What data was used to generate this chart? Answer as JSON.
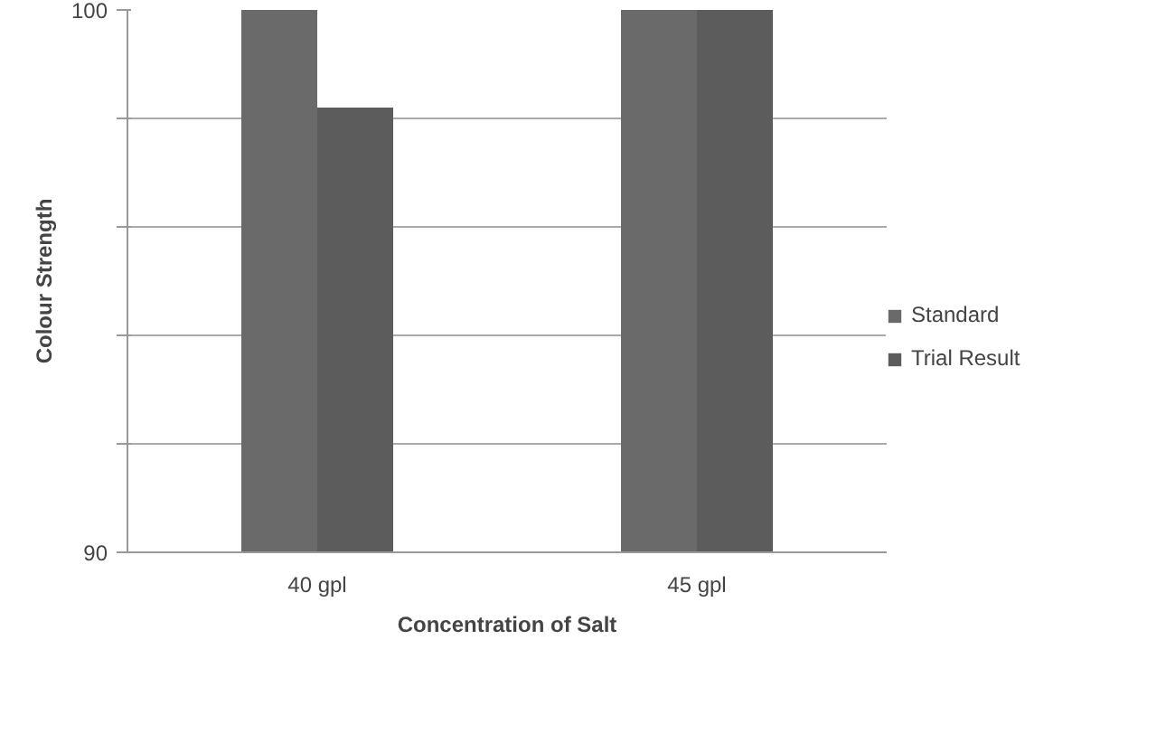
{
  "chart_data": {
    "type": "bar",
    "xlabel": "Concentration of Salt",
    "ylabel": "Colour Strength",
    "categories": [
      "40 gpl",
      "45 gpl"
    ],
    "series": [
      {
        "name": "Standard",
        "color": "#6a6a6a",
        "values": [
          100,
          100
        ]
      },
      {
        "name": "Trial Result",
        "color": "#5c5c5c",
        "values": [
          98.2,
          100
        ]
      }
    ],
    "ylim": [
      90,
      100
    ],
    "yticks": [
      90,
      {
        "value": 92,
        "label": null
      },
      {
        "value": 94,
        "label": null
      },
      {
        "value": 96,
        "label": null
      },
      {
        "value": 98,
        "label": null
      },
      100
    ],
    "grid": "y",
    "legend": "right"
  }
}
